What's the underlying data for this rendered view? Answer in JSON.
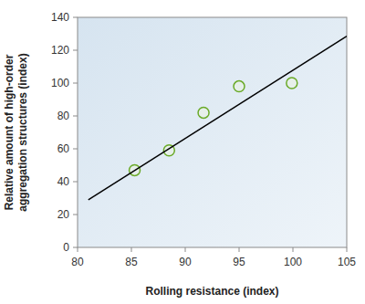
{
  "chart_data": {
    "type": "scatter",
    "x_label": "Rolling resistance (index)",
    "y_label": [
      "Relative amount of high-order",
      "aggregation structures (index)"
    ],
    "series": [
      {
        "type": "scatter",
        "marker": "circle",
        "color": "#6aaa28",
        "x": [
          85.3,
          88.5,
          91.7,
          95.0,
          99.9
        ],
        "values": [
          47,
          59,
          82,
          98,
          100
        ]
      },
      {
        "type": "line",
        "line_style": "solid",
        "color": "#000000",
        "x": [
          81,
          105
        ],
        "values": [
          29,
          128.5
        ]
      }
    ],
    "xlim": [
      80,
      105
    ],
    "xticks": [
      80,
      85,
      90,
      95,
      100,
      105
    ],
    "ylim": [
      0,
      140
    ],
    "yticks": [
      0,
      20,
      40,
      60,
      80,
      100,
      120,
      140
    ],
    "grid": false
  }
}
